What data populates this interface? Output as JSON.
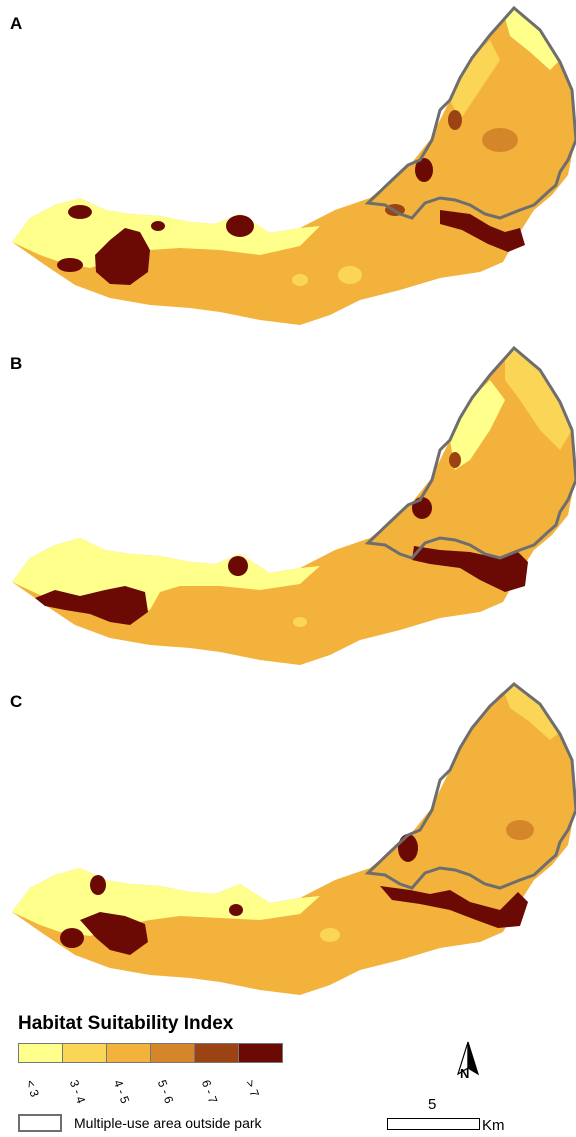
{
  "panels": [
    {
      "label": "A"
    },
    {
      "label": "B"
    },
    {
      "label": "C"
    }
  ],
  "legend": {
    "title": "Habitat Suitability Index",
    "classes": [
      {
        "label": "< 3",
        "color": "#ffff8c"
      },
      {
        "label": "3 - 4",
        "color": "#fbd656"
      },
      {
        "label": "4 - 5",
        "color": "#f2b23c"
      },
      {
        "label": "5 - 6",
        "color": "#d6862a"
      },
      {
        "label": "6 - 7",
        "color": "#9c4314"
      },
      {
        "label": "> 7",
        "color": "#6b0a05"
      }
    ],
    "boundary_label": "Multiple-use area outside park",
    "boundary_color": "#6e6e6e"
  },
  "north_arrow": {
    "label": "N"
  },
  "scale_bar": {
    "distance": "5",
    "unit": "Km"
  }
}
